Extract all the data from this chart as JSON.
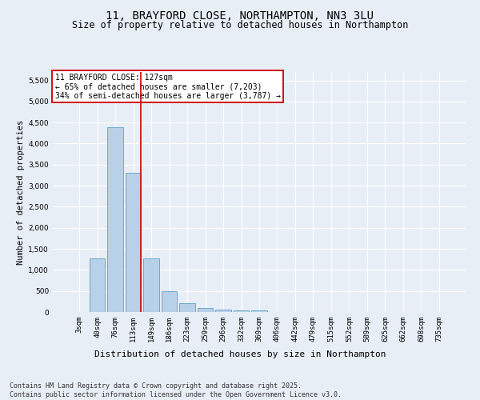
{
  "title_line1": "11, BRAYFORD CLOSE, NORTHAMPTON, NN3 3LU",
  "title_line2": "Size of property relative to detached houses in Northampton",
  "xlabel": "Distribution of detached houses by size in Northampton",
  "ylabel": "Number of detached properties",
  "categories": [
    "3sqm",
    "40sqm",
    "76sqm",
    "113sqm",
    "149sqm",
    "186sqm",
    "223sqm",
    "259sqm",
    "296sqm",
    "332sqm",
    "369sqm",
    "406sqm",
    "442sqm",
    "479sqm",
    "515sqm",
    "552sqm",
    "589sqm",
    "625sqm",
    "662sqm",
    "698sqm",
    "735sqm"
  ],
  "values": [
    0,
    1270,
    4380,
    3300,
    1280,
    500,
    215,
    90,
    55,
    40,
    30,
    0,
    0,
    0,
    0,
    0,
    0,
    0,
    0,
    0,
    0
  ],
  "bar_color": "#b8d0e8",
  "bar_edge_color": "#6fa8d0",
  "vline_x": 3.42,
  "annotation_text": "11 BRAYFORD CLOSE: 127sqm\n← 65% of detached houses are smaller (7,203)\n34% of semi-detached houses are larger (3,787) →",
  "annotation_box_color": "#ffffff",
  "annotation_box_edge_color": "#cc0000",
  "vline_color": "#cc0000",
  "ylim": [
    0,
    5700
  ],
  "yticks": [
    0,
    500,
    1000,
    1500,
    2000,
    2500,
    3000,
    3500,
    4000,
    4500,
    5000,
    5500
  ],
  "background_color": "#e8eef5",
  "grid_color": "#ffffff",
  "footer_line1": "Contains HM Land Registry data © Crown copyright and database right 2025.",
  "footer_line2": "Contains public sector information licensed under the Open Government Licence v3.0.",
  "title_fontsize": 10,
  "subtitle_fontsize": 8.5,
  "axis_label_fontsize": 7.5,
  "tick_fontsize": 6.5,
  "annotation_fontsize": 7,
  "footer_fontsize": 6
}
